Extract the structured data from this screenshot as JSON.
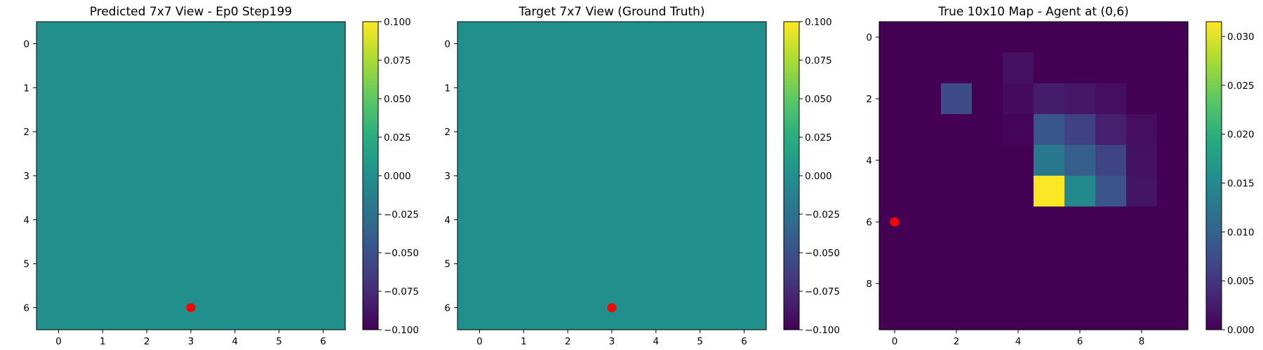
{
  "chart_data": [
    {
      "type": "heatmap",
      "title": "Predicted 7x7 View - Ep0 Step199",
      "xlabel": "",
      "ylabel": "",
      "rows": 7,
      "cols": 7,
      "x_ticks": [
        0,
        1,
        2,
        3,
        4,
        5,
        6
      ],
      "y_ticks": [
        0,
        1,
        2,
        3,
        4,
        5,
        6
      ],
      "values": [
        [
          0,
          0,
          0,
          0,
          0,
          0,
          0
        ],
        [
          0,
          0,
          0,
          0,
          0,
          0,
          0
        ],
        [
          0,
          0,
          0,
          0,
          0,
          0,
          0
        ],
        [
          0,
          0,
          0,
          0,
          0,
          0,
          0
        ],
        [
          0,
          0,
          0,
          0,
          0,
          0,
          0
        ],
        [
          0,
          0,
          0,
          0,
          0,
          0,
          0
        ],
        [
          0,
          0,
          0,
          0,
          0,
          0,
          0
        ]
      ],
      "vmin": -0.1,
      "vmax": 0.1,
      "colorbar_ticks": [
        "0.100",
        "0.075",
        "0.050",
        "0.025",
        "0.000",
        "−0.025",
        "−0.050",
        "−0.075",
        "−0.100"
      ],
      "colorbar_tick_values": [
        0.1,
        0.075,
        0.05,
        0.025,
        0.0,
        -0.025,
        -0.05,
        -0.075,
        -0.1
      ],
      "marker": {
        "x": 3,
        "y": 6,
        "color": "#ff0000"
      },
      "grid": false,
      "colormap": "viridis"
    },
    {
      "type": "heatmap",
      "title": "Target 7x7 View (Ground Truth)",
      "xlabel": "",
      "ylabel": "",
      "rows": 7,
      "cols": 7,
      "x_ticks": [
        0,
        1,
        2,
        3,
        4,
        5,
        6
      ],
      "y_ticks": [
        0,
        1,
        2,
        3,
        4,
        5,
        6
      ],
      "values": [
        [
          0,
          0,
          0,
          0,
          0,
          0,
          0
        ],
        [
          0,
          0,
          0,
          0,
          0,
          0,
          0
        ],
        [
          0,
          0,
          0,
          0,
          0,
          0,
          0
        ],
        [
          0,
          0,
          0,
          0,
          0,
          0,
          0
        ],
        [
          0,
          0,
          0,
          0,
          0,
          0,
          0
        ],
        [
          0,
          0,
          0,
          0,
          0,
          0,
          0
        ],
        [
          0,
          0,
          0,
          0,
          0,
          0,
          0
        ]
      ],
      "vmin": -0.1,
      "vmax": 0.1,
      "colorbar_ticks": [
        "0.100",
        "0.075",
        "0.050",
        "0.025",
        "0.000",
        "−0.025",
        "−0.050",
        "−0.075",
        "−0.100"
      ],
      "colorbar_tick_values": [
        0.1,
        0.075,
        0.05,
        0.025,
        0.0,
        -0.025,
        -0.05,
        -0.075,
        -0.1
      ],
      "marker": {
        "x": 3,
        "y": 6,
        "color": "#ff0000"
      },
      "grid": false,
      "colormap": "viridis"
    },
    {
      "type": "heatmap",
      "title": "True 10x10 Map - Agent at (0,6)",
      "xlabel": "",
      "ylabel": "",
      "rows": 10,
      "cols": 10,
      "x_ticks": [
        0,
        2,
        4,
        6,
        8
      ],
      "y_ticks": [
        0,
        2,
        4,
        6,
        8
      ],
      "values": [
        [
          0,
          0,
          0,
          0,
          0,
          0,
          0,
          0,
          0,
          0
        ],
        [
          0,
          0,
          0,
          0,
          0.0015,
          0,
          0,
          0,
          0,
          0
        ],
        [
          0,
          0,
          0.0072,
          0,
          0.001,
          0.0025,
          0.002,
          0.0012,
          0,
          0
        ],
        [
          0,
          0,
          0,
          0,
          0.0004,
          0.0085,
          0.0062,
          0.0028,
          0.0012,
          0
        ],
        [
          0,
          0,
          0,
          0,
          0,
          0.0128,
          0.0095,
          0.0065,
          0.0015,
          0
        ],
        [
          0,
          0,
          0,
          0,
          0,
          0.0315,
          0.0148,
          0.0082,
          0.0018,
          0
        ],
        [
          0,
          0,
          0,
          0,
          0,
          0,
          0,
          0,
          0,
          0
        ],
        [
          0,
          0,
          0,
          0,
          0,
          0,
          0,
          0,
          0,
          0
        ],
        [
          0,
          0,
          0,
          0,
          0,
          0,
          0,
          0,
          0,
          0
        ],
        [
          0,
          0,
          0,
          0,
          0,
          0,
          0,
          0,
          0,
          0
        ]
      ],
      "vmin": 0.0,
      "vmax": 0.0315,
      "colorbar_ticks": [
        "0.030",
        "0.025",
        "0.020",
        "0.015",
        "0.010",
        "0.005",
        "0.000"
      ],
      "colorbar_tick_values": [
        0.03,
        0.025,
        0.02,
        0.015,
        0.01,
        0.005,
        0.0
      ],
      "marker": {
        "x": 0,
        "y": 6,
        "color": "#ff0000"
      },
      "grid": false,
      "colormap": "viridis"
    }
  ]
}
